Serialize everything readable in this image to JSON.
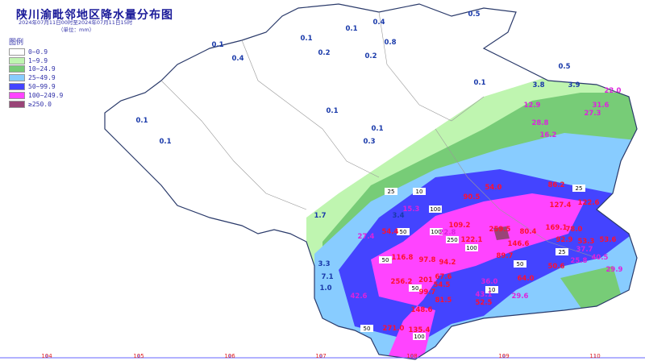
{
  "title": "陕川渝毗邻地区降水量分布图",
  "subtitle": "2024年07月11日00时至2024年07月11日15时",
  "unit": "（单位：mm）",
  "legend": {
    "title": "图例",
    "items": [
      {
        "label": "0~0.9",
        "color": "#ffffff"
      },
      {
        "label": "1~9.9",
        "color": "#bff5b0"
      },
      {
        "label": "10~24.9",
        "color": "#77cc77"
      },
      {
        "label": "25~49.9",
        "color": "#88ccff"
      },
      {
        "label": "50~99.9",
        "color": "#4444ff"
      },
      {
        "label": "100~249.9",
        "color": "#ff44ff"
      },
      {
        "label": "≥250.0",
        "color": "#994477"
      }
    ]
  },
  "axis": {
    "longitudes": [
      "104",
      "105",
      "106",
      "107",
      "108",
      "109",
      "110"
    ]
  },
  "rain_labels": [
    "0.5",
    "0.1",
    "0.4",
    "0.1",
    "0.8",
    "0.2",
    "0.2",
    "0.4",
    "0.1",
    "0.5",
    "22.0",
    "3.8",
    "3.9",
    "31.6",
    "12.9",
    "27.3",
    "28.8",
    "16.2",
    "0.1",
    "0.1",
    "0.1",
    "0.3",
    "0.1",
    "0.1",
    "15.3",
    "54.4",
    "27.4",
    "22.8",
    "109.2",
    "259.5",
    "80.4",
    "169.1",
    "127.4",
    "122.1",
    "146.6",
    "92.9",
    "53.3",
    "53.6",
    "116.8",
    "97.8",
    "94.2",
    "89.7",
    "67.6",
    "64.0",
    "50.6",
    "25.8",
    "37.7",
    "40.5",
    "29.9",
    "256.2",
    "201",
    "36.0",
    "54.5",
    "99.7",
    "81.5",
    "43.1",
    "52.5",
    "29.6",
    "148.6",
    "271.0",
    "135.4",
    "42.6",
    "3.4",
    "1.0",
    "3.3",
    "7.1",
    "1.7",
    "78.0",
    "90.5",
    "54.0",
    "86.2",
    "122.6"
  ],
  "contour_tags": [
    "25",
    "50",
    "100",
    "250",
    "100",
    "50",
    "25",
    "10",
    "50",
    "100",
    "25",
    "50",
    "10",
    "100",
    "50"
  ]
}
